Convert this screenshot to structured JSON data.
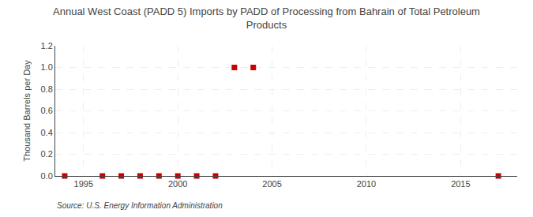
{
  "chart_data": {
    "type": "scatter",
    "title": "Annual West Coast (PADD 5) Imports by PADD of Processing from Bahrain of Total Petroleum\nProducts",
    "ylabel": "Thousand Barrels per Day",
    "source": "Source: U.S. Energy Information Administration",
    "x": [
      1994,
      1996,
      1997,
      1998,
      1999,
      2000,
      2001,
      2002,
      2003,
      2004,
      2017
    ],
    "values": [
      0.0,
      0.0,
      0.0,
      0.0,
      0.0,
      0.0,
      0.0,
      0.0,
      1.0,
      1.0,
      0.0
    ],
    "color": "#cc0000",
    "marker": "square",
    "xlim": [
      1993.5,
      2018
    ],
    "ylim": [
      0.0,
      1.2
    ],
    "xticks": [
      1995,
      2000,
      2005,
      2010,
      2015
    ],
    "yticks": [
      {
        "value": 0.0,
        "label": "0.0"
      },
      0.2,
      0.4,
      0.6,
      0.8,
      {
        "value": 1.0,
        "label": "1.0"
      },
      1.2
    ],
    "grid": true
  }
}
